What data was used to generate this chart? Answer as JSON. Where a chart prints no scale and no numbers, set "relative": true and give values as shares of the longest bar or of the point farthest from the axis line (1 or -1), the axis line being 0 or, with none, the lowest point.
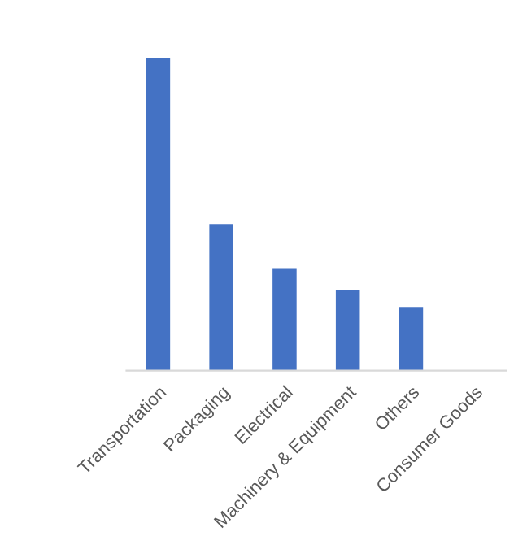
{
  "chart_data": {
    "type": "bar",
    "relative": true,
    "categories": [
      "Transportation",
      "Packaging",
      "Electrical",
      "Machinery & Equipment",
      "Others",
      "Consumer Goods"
    ],
    "values": [
      1,
      0.469,
      0.325,
      0.258,
      0.201,
      null
    ],
    "color": "#4472c4",
    "grid": false,
    "legend": false
  }
}
